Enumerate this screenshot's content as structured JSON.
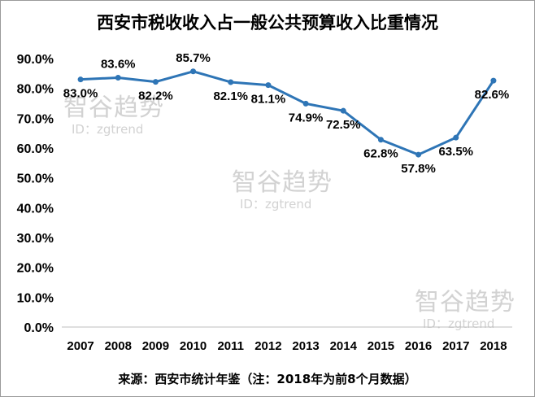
{
  "chart_data": {
    "type": "line",
    "title": "西安市税收收入占一般公共预算收入比重情况",
    "source_note": "来源：西安市统计年鉴（注：2018年为前8个月数据）",
    "categories": [
      "2007",
      "2008",
      "2009",
      "2010",
      "2011",
      "2012",
      "2013",
      "2014",
      "2015",
      "2016",
      "2017",
      "2018"
    ],
    "values": [
      83.0,
      83.6,
      82.2,
      85.7,
      82.1,
      81.1,
      74.9,
      72.5,
      62.8,
      57.8,
      63.5,
      82.6
    ],
    "value_labels": [
      "83.0%",
      "83.6%",
      "82.2%",
      "85.7%",
      "82.1%",
      "81.1%",
      "74.9%",
      "72.5%",
      "62.8%",
      "57.8%",
      "63.5%",
      "82.6%"
    ],
    "y_ticks": [
      "0.0%",
      "10.0%",
      "20.0%",
      "30.0%",
      "40.0%",
      "50.0%",
      "60.0%",
      "70.0%",
      "80.0%",
      "90.0%"
    ],
    "ylim": [
      0,
      90
    ],
    "grid": false,
    "legend": "none",
    "line_color": "#2e75b6"
  },
  "watermark": {
    "brand": "智谷趋势",
    "id_text": "ID：zgtrend"
  }
}
